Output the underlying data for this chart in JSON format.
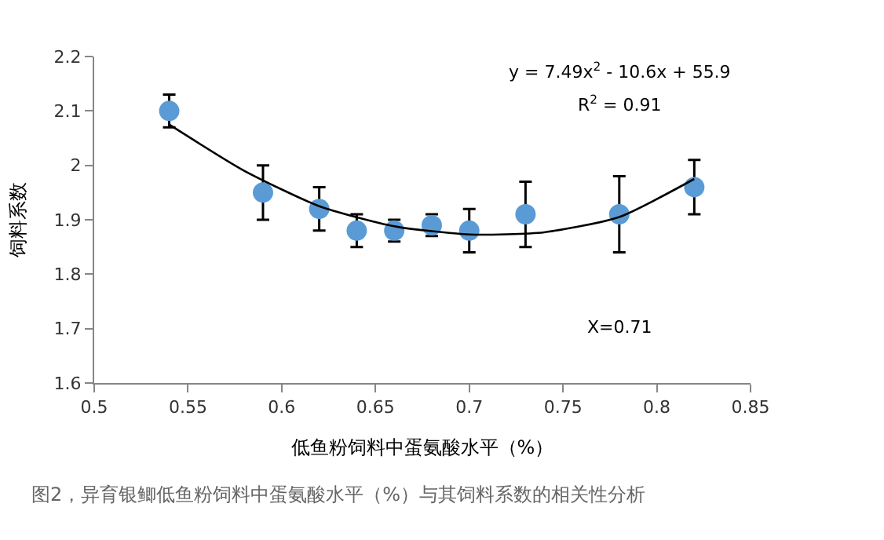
{
  "chart_data": {
    "type": "scatter",
    "xlabel": "低鱼粉饲料中蛋氨酸水平（%）",
    "ylabel": "饲料系数",
    "x": [
      0.54,
      0.59,
      0.62,
      0.64,
      0.66,
      0.68,
      0.7,
      0.73,
      0.78,
      0.82
    ],
    "series": [
      {
        "color": "#5b9bd5",
        "marker": "circle",
        "values": [
          2.1,
          1.95,
          1.92,
          1.88,
          1.88,
          1.89,
          1.88,
          1.91,
          1.91,
          1.96
        ],
        "errors": [
          0.03,
          0.05,
          0.04,
          0.03,
          0.02,
          0.02,
          0.04,
          0.06,
          0.07,
          0.05
        ]
      },
      {
        "type": "line",
        "color": "#000000",
        "marker": "none",
        "line_style": "solid",
        "x": [
          0.54,
          0.58,
          0.62,
          0.66,
          0.7,
          0.74,
          0.78,
          0.82
        ],
        "values": [
          2.075,
          1.99,
          1.925,
          1.888,
          1.873,
          1.877,
          1.905,
          1.975
        ]
      }
    ],
    "xlim": [
      0.5,
      0.85
    ],
    "xticks": [
      0.5,
      0.55,
      0.6,
      0.65,
      0.7,
      0.75,
      0.8,
      0.85
    ],
    "ylim": [
      1.6,
      2.2
    ],
    "yticks": [
      1.6,
      1.7,
      1.8,
      1.9,
      2,
      2.1,
      2.2
    ],
    "legend": false,
    "annotations": [
      "y = 7.49x$^{2}$ - 10.6x + 55.9",
      "R$^{2}$ = 0.91",
      "X=0.71",
      "图2，异育银鲫低鱼粉饲料中蛋氨酸水平（%）与其饲料系数的相关性分析"
    ]
  }
}
